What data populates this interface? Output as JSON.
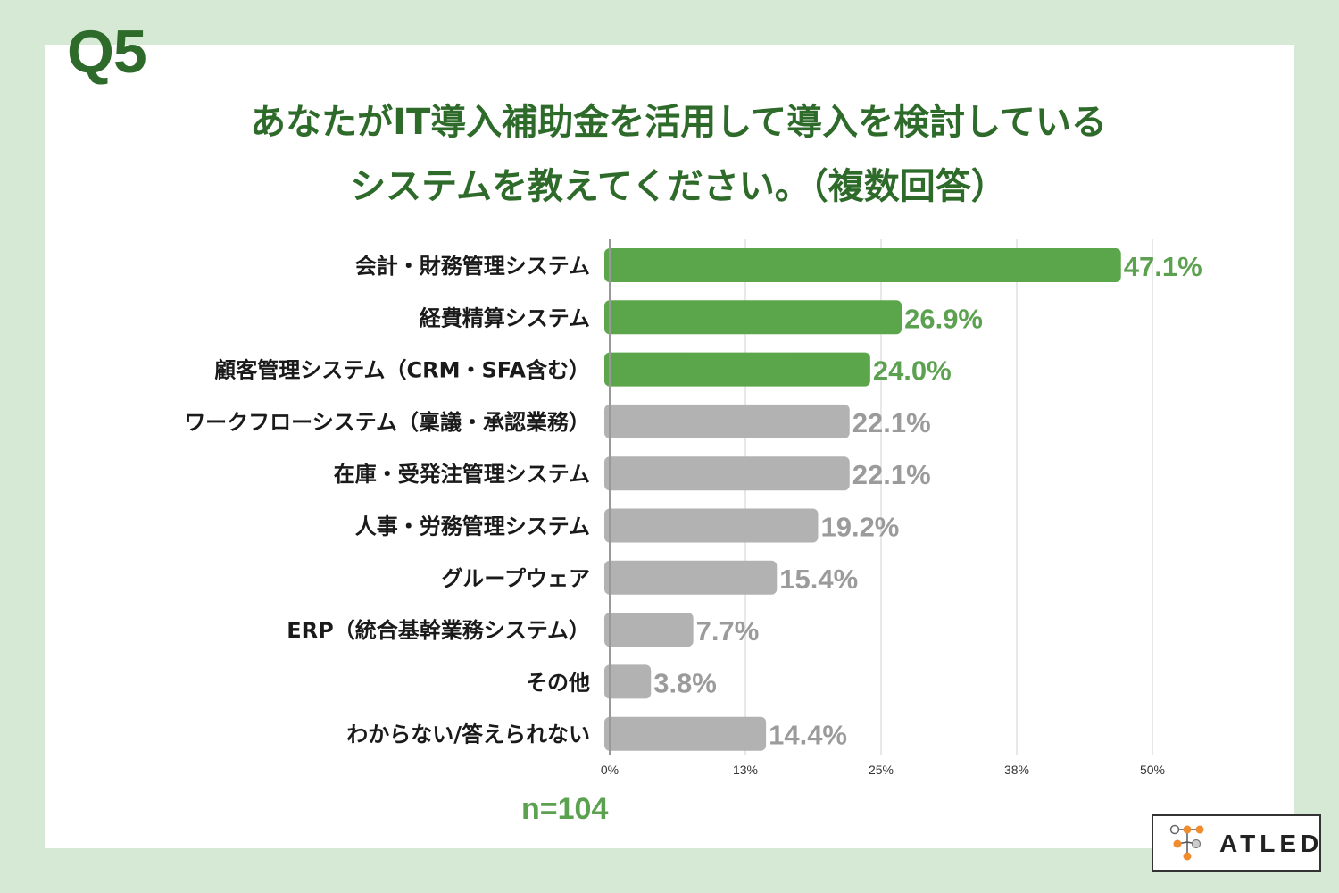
{
  "question": "Q5",
  "title_line1": "あなたがIT導入補助金を活用して導入を検討している",
  "title_line2": "システムを教えてください。（複数回答）",
  "sample_size": "n=104",
  "logo_text": "ATLED",
  "colors": {
    "background": "#d6e9d4",
    "title": "#2e6b2a",
    "highlight_bar": "#5ba64b",
    "highlight_label": "#5ca150",
    "other_bar": "#b2b2b2",
    "other_label": "#9b9b9b",
    "grid": "#d0d0d0",
    "axis": "#999999",
    "logo_orange": "#f08c2e",
    "logo_gray": "#aaaaaa"
  },
  "chart_data": {
    "type": "bar",
    "orientation": "horizontal",
    "categories": [
      "会計・財務管理システム",
      "経費精算システム",
      "顧客管理システム（CRM・SFA含む）",
      "ワークフローシステム（稟議・承認業務）",
      "在庫・受発注管理システム",
      "人事・労務管理システム",
      "グループウェア",
      "ERP（統合基幹業務システム）",
      "その他",
      "わからない/答えられない"
    ],
    "values": [
      47.1,
      26.9,
      24.0,
      22.1,
      22.1,
      19.2,
      15.4,
      7.7,
      3.8,
      14.4
    ],
    "value_labels": [
      "47.1%",
      "26.9%",
      "24.0%",
      "22.1%",
      "22.1%",
      "19.2%",
      "15.4%",
      "7.7%",
      "3.8%",
      "14.4%"
    ],
    "highlighted": [
      true,
      true,
      true,
      false,
      false,
      false,
      false,
      false,
      false,
      false
    ],
    "xlim": [
      0,
      50
    ],
    "xticks": [
      0,
      12.5,
      25,
      37.5,
      50
    ],
    "xtick_labels": [
      "0%",
      "13%",
      "25%",
      "38%",
      "50%"
    ],
    "grid": true,
    "unit": "%"
  }
}
